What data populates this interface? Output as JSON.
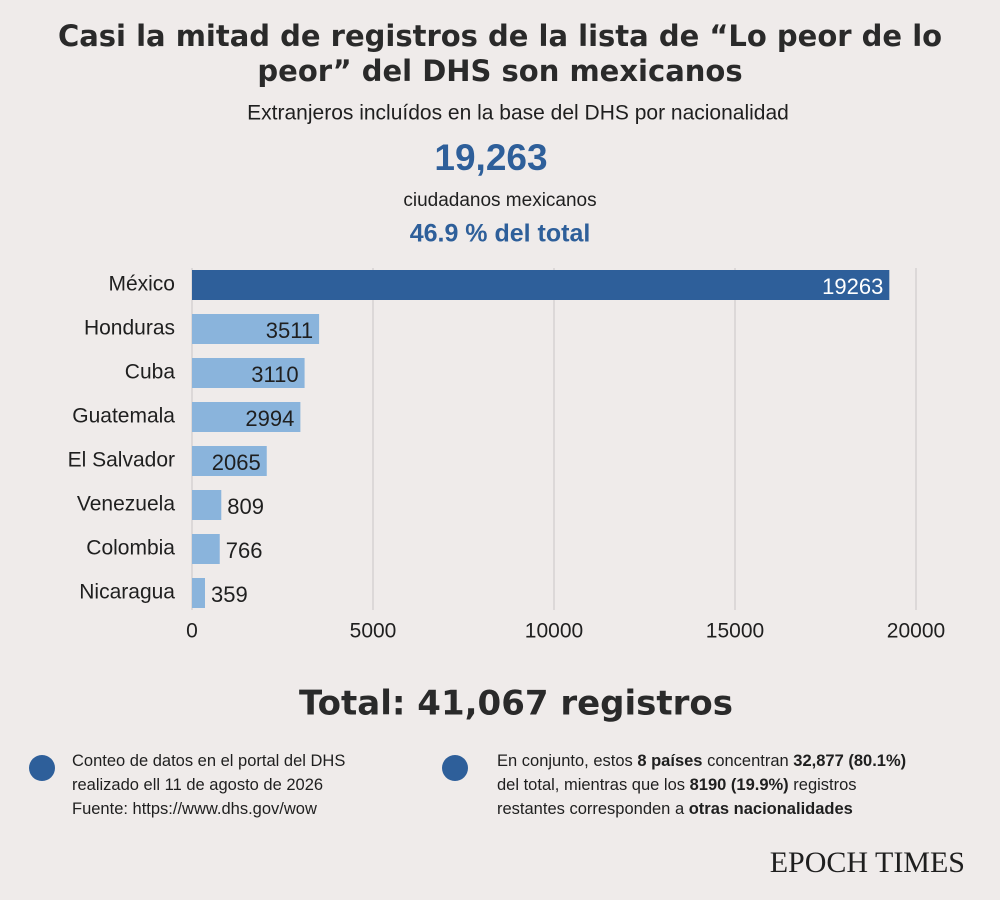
{
  "header": {
    "title_lines": [
      "Casi la mitad de registros de la lista de “Lo peor de lo",
      "peor” del DHS son mexicanos"
    ],
    "subtitle": "Extranjeros incluídos en la base del DHS por nacionalidad",
    "highlight_number": "19,263",
    "highlight_caption": "ciudadanos mexicanos",
    "highlight_share": "46.9 % del total"
  },
  "chart_data": {
    "type": "bar",
    "orientation": "horizontal",
    "categories": [
      "México",
      "Honduras",
      "Cuba",
      "Guatemala",
      "El Salvador",
      "Venezuela",
      "Colombia",
      "Nicaragua"
    ],
    "values": [
      19263,
      3511,
      3110,
      2994,
      2065,
      809,
      766,
      359
    ],
    "colors": [
      "#2e5f9a",
      "#8ab4dc",
      "#8ab4dc",
      "#8ab4dc",
      "#8ab4dc",
      "#8ab4dc",
      "#8ab4dc",
      "#8ab4dc"
    ],
    "xlim": [
      0,
      20000
    ],
    "xticks": [
      0,
      5000,
      10000,
      15000,
      20000
    ],
    "grid": true
  },
  "total": "Total: 41,067 registros",
  "notes": [
    {
      "lines": [
        [
          {
            "text": "Conteo de datos en el portal del DHS"
          }
        ],
        [
          {
            "text": "realizado ell 11 de agosto de 2026"
          }
        ],
        [
          {
            "text": "Fuente: https://www.dhs.gov/wow"
          }
        ]
      ]
    },
    {
      "lines": [
        [
          {
            "text": "En conjunto, estos "
          },
          {
            "text": "8 países",
            "bold": true
          },
          {
            "text": " concentran "
          },
          {
            "text": "32,877 (80.1%)",
            "bold": true
          }
        ],
        [
          {
            "text": "del total, mientras que los "
          },
          {
            "text": "8190 (19.9%)",
            "bold": true
          },
          {
            "text": " registros"
          }
        ],
        [
          {
            "text": "restantes corresponden a "
          },
          {
            "text": "otras nacionalidades",
            "bold": true
          }
        ]
      ]
    }
  ],
  "logo": "EPOCH TIMES"
}
